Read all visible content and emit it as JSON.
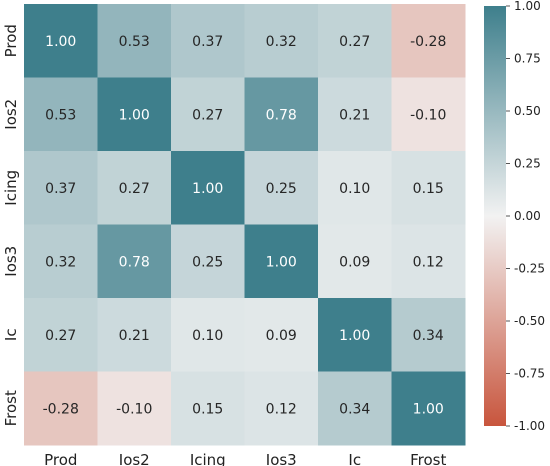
{
  "chart_data": {
    "type": "heatmap",
    "title": "",
    "xlabel": "",
    "ylabel": "",
    "labels": [
      "Prod",
      "Ios2",
      "Icing",
      "Ios3",
      "Ic",
      "Frost"
    ],
    "matrix": [
      [
        1.0,
        0.53,
        0.37,
        0.32,
        0.27,
        -0.28
      ],
      [
        0.53,
        1.0,
        0.27,
        0.78,
        0.21,
        -0.1
      ],
      [
        0.37,
        0.27,
        1.0,
        0.25,
        0.1,
        0.15
      ],
      [
        0.32,
        0.78,
        0.25,
        1.0,
        0.09,
        0.12
      ],
      [
        0.27,
        0.21,
        0.1,
        0.09,
        1.0,
        0.34
      ],
      [
        -0.28,
        -0.1,
        0.15,
        0.12,
        0.34,
        1.0
      ]
    ],
    "value_format": "2 decimals",
    "colorbar": {
      "range": [
        -1.0,
        1.0
      ],
      "ticks": [
        "1.00",
        "0.75",
        "0.50",
        "0.25",
        "0.00",
        "-0.25",
        "-0.50",
        "-0.75",
        "-1.00"
      ],
      "tick_values": [
        1.0,
        0.75,
        0.5,
        0.25,
        0.0,
        -0.25,
        -0.5,
        -0.75,
        -1.0
      ],
      "placement": "right"
    },
    "colors": {
      "negative": "#c8553d",
      "neutral": "#f2f2f2",
      "positive": "#3e7f8c"
    },
    "grid": false
  }
}
